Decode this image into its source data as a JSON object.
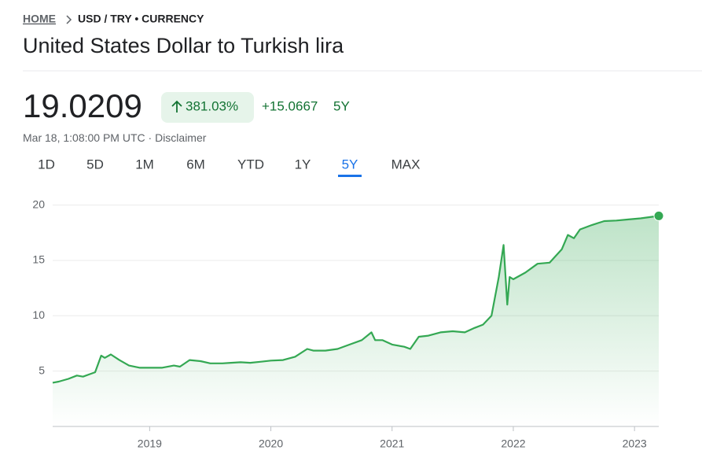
{
  "breadcrumb": {
    "home": "HOME",
    "path": "USD / TRY • CURRENCY"
  },
  "title": "United States Dollar to Turkish lira",
  "price": "19.0209",
  "change_pct": "381.03%",
  "change_abs": "+15.0667",
  "change_period": "5Y",
  "timestamp": "Mar 18, 1:08:00 PM UTC",
  "separator": "·",
  "disclaimer": "Disclaimer",
  "ranges": [
    "1D",
    "5D",
    "1M",
    "6M",
    "YTD",
    "1Y",
    "5Y",
    "MAX"
  ],
  "selected_range": "5Y",
  "chart_data": {
    "type": "line",
    "color": "#34a853",
    "x": [
      2018.2,
      2018.25,
      2018.33,
      2018.4,
      2018.45,
      2018.5,
      2018.55,
      2018.6,
      2018.63,
      2018.68,
      2018.75,
      2018.83,
      2018.92,
      2019.0,
      2019.1,
      2019.2,
      2019.25,
      2019.33,
      2019.42,
      2019.5,
      2019.6,
      2019.67,
      2019.75,
      2019.83,
      2019.92,
      2020.0,
      2020.1,
      2020.2,
      2020.3,
      2020.35,
      2020.45,
      2020.55,
      2020.65,
      2020.75,
      2020.83,
      2020.86,
      2020.92,
      2021.0,
      2021.1,
      2021.15,
      2021.22,
      2021.3,
      2021.4,
      2021.5,
      2021.6,
      2021.68,
      2021.75,
      2021.82,
      2021.88,
      2021.92,
      2021.95,
      2021.97,
      2022.0,
      2022.1,
      2022.2,
      2022.3,
      2022.4,
      2022.45,
      2022.5,
      2022.55,
      2022.65,
      2022.75,
      2022.85,
      2022.95,
      2023.05,
      2023.2
    ],
    "values": [
      3.95,
      4.05,
      4.3,
      4.6,
      4.5,
      4.7,
      4.9,
      6.4,
      6.2,
      6.5,
      6.0,
      5.5,
      5.3,
      5.3,
      5.3,
      5.5,
      5.4,
      6.0,
      5.9,
      5.7,
      5.7,
      5.75,
      5.8,
      5.75,
      5.85,
      5.95,
      6.0,
      6.3,
      7.0,
      6.85,
      6.85,
      7.0,
      7.4,
      7.8,
      8.5,
      7.8,
      7.8,
      7.4,
      7.2,
      7.0,
      8.1,
      8.2,
      8.5,
      8.6,
      8.5,
      8.9,
      9.2,
      10.0,
      13.5,
      16.4,
      11.0,
      13.5,
      13.3,
      13.9,
      14.7,
      14.8,
      16.0,
      17.3,
      17.0,
      17.8,
      18.2,
      18.55,
      18.6,
      18.7,
      18.8,
      19.0209
    ],
    "xlim": [
      2018.2,
      2023.2
    ],
    "xticks": [
      2019,
      2020,
      2021,
      2022,
      2023
    ],
    "ylim": [
      0,
      21
    ],
    "yticks": [
      5,
      10,
      15,
      20
    ],
    "grid": true
  }
}
